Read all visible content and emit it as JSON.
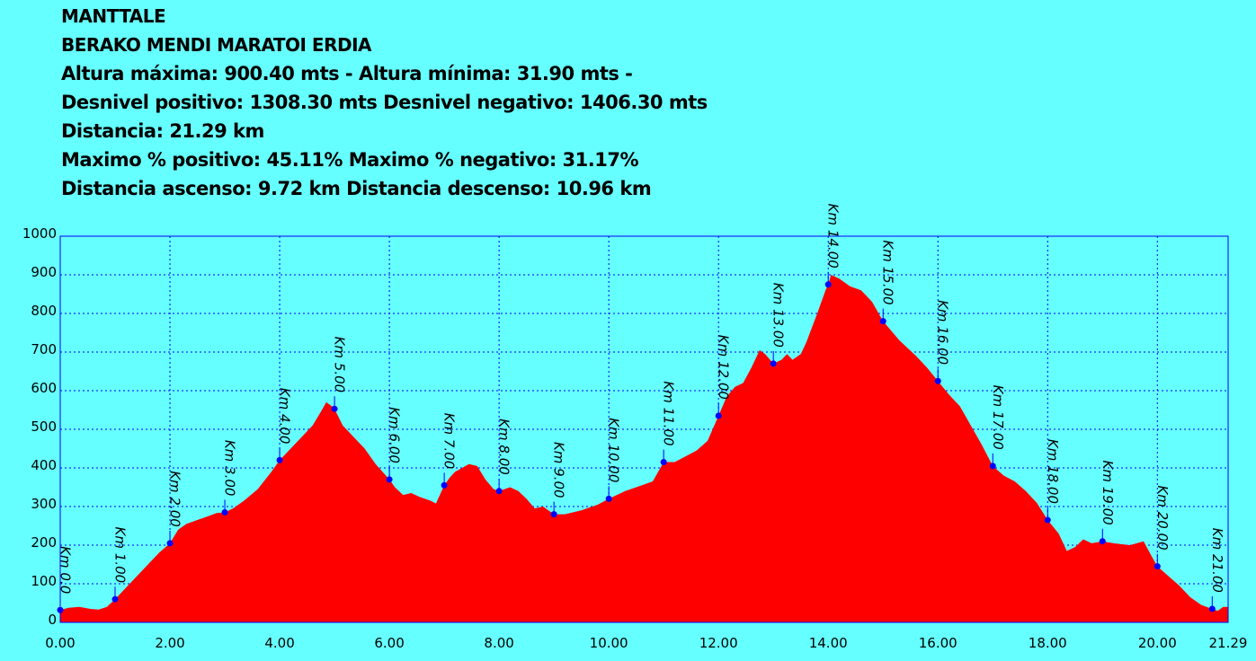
{
  "header": {
    "title": "MANTTALE",
    "subtitle": "BERAKO MENDI MARATOI ERDIA",
    "altitudes": "Altura máxima: 900.40 mts - Altura mínima: 31.90 mts -",
    "desnivel": "Desnivel positivo: 1308.30 mts Desnivel negativo: 1406.30 mts",
    "distancia": "Distancia: 21.29 km",
    "maximo": "Maximo % positivo: 45.11%  Maximo % negativo: 31.17%",
    "ascenso": "Distancia ascenso: 9.72 km Distancia descenso: 10.96 km"
  },
  "chart_data": {
    "type": "area",
    "xlim": [
      0,
      21.29
    ],
    "ylim": [
      0,
      1000
    ],
    "x_ticks": [
      "0.00",
      "2.00",
      "4.00",
      "6.00",
      "8.00",
      "10.00",
      "12.00",
      "14.00",
      "16.00",
      "18.00",
      "20.00",
      "21.29"
    ],
    "x_tick_values": [
      0,
      2,
      4,
      6,
      8,
      10,
      12,
      14,
      16,
      18,
      20,
      21.29
    ],
    "y_ticks": [
      "0",
      "100",
      "200",
      "300",
      "400",
      "500",
      "600",
      "700",
      "800",
      "900",
      "1000"
    ],
    "y_tick_values": [
      0,
      100,
      200,
      300,
      400,
      500,
      600,
      700,
      800,
      900,
      1000
    ],
    "grid": true,
    "colors": {
      "background": "#66FFFF",
      "fill": "#FF0000",
      "grid": "#0000FF",
      "marker": "#0000FF"
    },
    "profile": [
      [
        0,
        32
      ],
      [
        0.15,
        38
      ],
      [
        0.35,
        40
      ],
      [
        0.55,
        35
      ],
      [
        0.7,
        33
      ],
      [
        0.85,
        40
      ],
      [
        1.0,
        60
      ],
      [
        1.2,
        90
      ],
      [
        1.4,
        120
      ],
      [
        1.6,
        150
      ],
      [
        1.8,
        180
      ],
      [
        2.0,
        205
      ],
      [
        2.15,
        240
      ],
      [
        2.3,
        255
      ],
      [
        2.5,
        265
      ],
      [
        2.7,
        275
      ],
      [
        2.85,
        283
      ],
      [
        3.0,
        285
      ],
      [
        3.15,
        295
      ],
      [
        3.35,
        315
      ],
      [
        3.6,
        345
      ],
      [
        3.85,
        390
      ],
      [
        4.0,
        420
      ],
      [
        4.2,
        450
      ],
      [
        4.4,
        480
      ],
      [
        4.6,
        510
      ],
      [
        4.75,
        545
      ],
      [
        4.85,
        570
      ],
      [
        4.95,
        560
      ],
      [
        5.0,
        553
      ],
      [
        5.15,
        510
      ],
      [
        5.35,
        480
      ],
      [
        5.55,
        450
      ],
      [
        5.75,
        410
      ],
      [
        6.0,
        370
      ],
      [
        6.1,
        350
      ],
      [
        6.25,
        330
      ],
      [
        6.4,
        335
      ],
      [
        6.55,
        325
      ],
      [
        6.75,
        315
      ],
      [
        6.85,
        308
      ],
      [
        7.0,
        355
      ],
      [
        7.1,
        375
      ],
      [
        7.2,
        390
      ],
      [
        7.3,
        398
      ],
      [
        7.45,
        410
      ],
      [
        7.6,
        405
      ],
      [
        7.75,
        370
      ],
      [
        7.9,
        345
      ],
      [
        8.0,
        340
      ],
      [
        8.2,
        350
      ],
      [
        8.35,
        340
      ],
      [
        8.5,
        320
      ],
      [
        8.65,
        295
      ],
      [
        8.8,
        300
      ],
      [
        9.0,
        280
      ],
      [
        9.2,
        280
      ],
      [
        9.5,
        290
      ],
      [
        9.8,
        305
      ],
      [
        10.0,
        320
      ],
      [
        10.3,
        340
      ],
      [
        10.6,
        355
      ],
      [
        10.8,
        365
      ],
      [
        11.0,
        415
      ],
      [
        11.2,
        415
      ],
      [
        11.4,
        430
      ],
      [
        11.6,
        445
      ],
      [
        11.8,
        470
      ],
      [
        12.0,
        535
      ],
      [
        12.15,
        585
      ],
      [
        12.3,
        610
      ],
      [
        12.45,
        620
      ],
      [
        12.6,
        660
      ],
      [
        12.75,
        705
      ],
      [
        12.85,
        695
      ],
      [
        13.0,
        670
      ],
      [
        13.15,
        680
      ],
      [
        13.25,
        695
      ],
      [
        13.35,
        680
      ],
      [
        13.5,
        695
      ],
      [
        13.6,
        725
      ],
      [
        13.8,
        800
      ],
      [
        13.95,
        860
      ],
      [
        14.0,
        875
      ],
      [
        14.05,
        900
      ],
      [
        14.2,
        890
      ],
      [
        14.4,
        870
      ],
      [
        14.6,
        860
      ],
      [
        14.8,
        830
      ],
      [
        15.0,
        780
      ],
      [
        15.3,
        730
      ],
      [
        15.6,
        690
      ],
      [
        15.8,
        660
      ],
      [
        16.0,
        625
      ],
      [
        16.2,
        590
      ],
      [
        16.4,
        560
      ],
      [
        16.6,
        510
      ],
      [
        16.8,
        460
      ],
      [
        17.0,
        405
      ],
      [
        17.2,
        380
      ],
      [
        17.4,
        365
      ],
      [
        17.6,
        340
      ],
      [
        17.8,
        310
      ],
      [
        18.0,
        265
      ],
      [
        18.2,
        230
      ],
      [
        18.35,
        185
      ],
      [
        18.5,
        195
      ],
      [
        18.65,
        215
      ],
      [
        18.8,
        205
      ],
      [
        19.0,
        210
      ],
      [
        19.2,
        205
      ],
      [
        19.5,
        200
      ],
      [
        19.75,
        210
      ],
      [
        19.9,
        170
      ],
      [
        20.0,
        145
      ],
      [
        20.2,
        120
      ],
      [
        20.4,
        95
      ],
      [
        20.6,
        65
      ],
      [
        20.8,
        45
      ],
      [
        21.0,
        35
      ],
      [
        21.1,
        30
      ],
      [
        21.2,
        40
      ],
      [
        21.29,
        40
      ]
    ],
    "markers": [
      {
        "label": "Km 0.0",
        "x": 0.0,
        "y": 32
      },
      {
        "label": "Km 1.00",
        "x": 1.0,
        "y": 60
      },
      {
        "label": "Km 2.00",
        "x": 2.0,
        "y": 205
      },
      {
        "label": "Km 3.00",
        "x": 3.0,
        "y": 285
      },
      {
        "label": "Km 4.00",
        "x": 4.0,
        "y": 420
      },
      {
        "label": "Km 5.00",
        "x": 5.0,
        "y": 553
      },
      {
        "label": "Km 6.00",
        "x": 6.0,
        "y": 370
      },
      {
        "label": "Km 7.00",
        "x": 7.0,
        "y": 355
      },
      {
        "label": "Km 8.00",
        "x": 8.0,
        "y": 340
      },
      {
        "label": "Km 9.00",
        "x": 9.0,
        "y": 280
      },
      {
        "label": "Km 10.00",
        "x": 10.0,
        "y": 320
      },
      {
        "label": "Km 11.00",
        "x": 11.0,
        "y": 415
      },
      {
        "label": "Km 12.00",
        "x": 12.0,
        "y": 535
      },
      {
        "label": "Km 13.00",
        "x": 13.0,
        "y": 670
      },
      {
        "label": "Km 14.00",
        "x": 14.0,
        "y": 875
      },
      {
        "label": "Km 15.00",
        "x": 15.0,
        "y": 780
      },
      {
        "label": "Km 16.00",
        "x": 16.0,
        "y": 625
      },
      {
        "label": "Km 17.00",
        "x": 17.0,
        "y": 405
      },
      {
        "label": "Km 18.00",
        "x": 18.0,
        "y": 265
      },
      {
        "label": "Km 19.00",
        "x": 19.0,
        "y": 210
      },
      {
        "label": "Km 20.00",
        "x": 20.0,
        "y": 145
      },
      {
        "label": "Km 21.00",
        "x": 21.0,
        "y": 35
      }
    ]
  }
}
